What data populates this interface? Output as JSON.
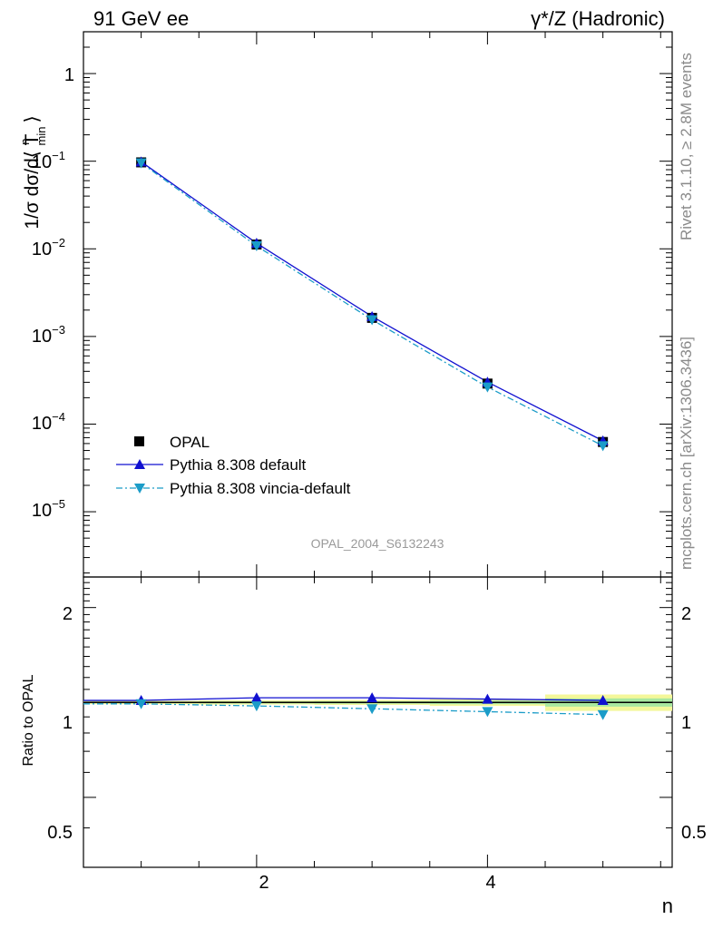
{
  "header": {
    "left": "91 GeV ee",
    "right": "γ*/Z (Hadronic)"
  },
  "side_text": {
    "top": "Rivet 3.1.10, ≥ 2.8M events",
    "bottom": "mcplots.cern.ch [arXiv:1306.3436]"
  },
  "watermark": "OPAL_2004_S6132243",
  "legend": {
    "opal": "OPAL",
    "pythia_default": "Pythia 8.308 default",
    "pythia_vincia": "Pythia 8.308 vincia-default"
  },
  "axes": {
    "xlabel": "n",
    "ylabel_main": "1/σ dσ/d⟨ T",
    "ylabel_main_sup": "n",
    "ylabel_main_sub": "min",
    "ylabel_main_close": "⟩",
    "ylabel_ratio": "Ratio to OPAL",
    "main_ticks": [
      {
        "base": "1",
        "exp": ""
      },
      {
        "base": "10",
        "exp": "−1"
      },
      {
        "base": "10",
        "exp": "−2"
      },
      {
        "base": "10",
        "exp": "−3"
      },
      {
        "base": "10",
        "exp": "−4"
      },
      {
        "base": "10",
        "exp": "−5"
      }
    ],
    "ratio_ticks": [
      "2",
      "1",
      "0.5"
    ],
    "x_ticks": [
      "2",
      "4"
    ]
  },
  "colors": {
    "opal": "#000000",
    "pythia_default": "#1010d0",
    "pythia_vincia": "#1b9cc8",
    "band_yellow": "#f4f79a",
    "band_green": "#a8e8a0"
  },
  "chart_data": {
    "type": "line",
    "xlim": [
      0.5,
      5.6
    ],
    "ylim_main": [
      1.8e-06,
      3.0
    ],
    "yscale_main": "log",
    "ylim_ratio": [
      0.3,
      2.5
    ],
    "yscale_ratio": "log",
    "x": [
      1,
      2,
      3,
      4,
      5
    ],
    "series": [
      {
        "name": "OPAL",
        "values": [
          0.097,
          0.0112,
          0.00163,
          0.00029,
          6.25e-05
        ],
        "ratio": [
          1.0,
          1.0,
          1.0,
          1.0,
          1.0
        ],
        "band_half": [
          0.012,
          0.015,
          0.018,
          0.025,
          0.06
        ]
      },
      {
        "name": "Pythia 8.308 default",
        "values": [
          0.0985,
          0.0116,
          0.00169,
          0.000302,
          6.45e-05
        ],
        "ratio": [
          1.015,
          1.035,
          1.035,
          1.025,
          1.015
        ]
      },
      {
        "name": "Pythia 8.308 vincia-default",
        "values": [
          0.0955,
          0.0108,
          0.00155,
          0.000265,
          5.65e-05
        ],
        "ratio": [
          0.99,
          0.975,
          0.955,
          0.935,
          0.915
        ]
      }
    ],
    "grid": false,
    "legend_position": "bottom-left"
  }
}
